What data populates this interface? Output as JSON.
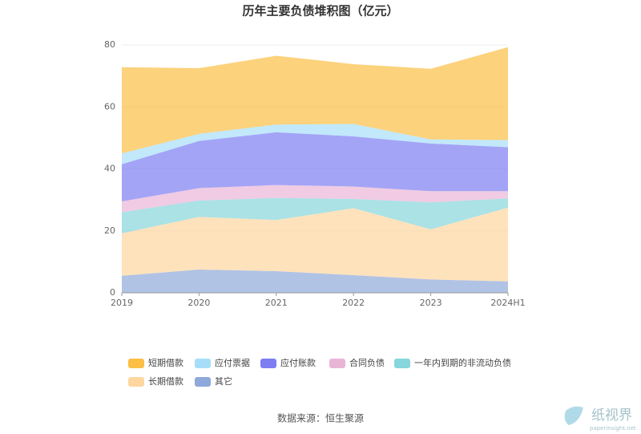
{
  "chart_data": {
    "type": "stacked_area",
    "title": "历年主要负债堆积图（亿元）",
    "categories": [
      "2019",
      "2020",
      "2021",
      "2022",
      "2023",
      "2024H1"
    ],
    "series": [
      {
        "name": "短期借款",
        "color": "#fbbf45",
        "values": [
          27.8,
          21.2,
          22.2,
          19.3,
          22.8,
          30
        ]
      },
      {
        "name": "应付票据",
        "color": "#a6def9",
        "values": [
          3.5,
          2.3,
          2.5,
          4,
          1.3,
          2.3
        ]
      },
      {
        "name": "应付账款",
        "color": "#7c7ef2",
        "values": [
          12,
          15.2,
          17,
          16.2,
          15.4,
          14.2
        ]
      },
      {
        "name": "合同负债",
        "color": "#e9b5d7",
        "values": [
          3.5,
          4,
          4.2,
          4,
          3.6,
          2.3
        ]
      },
      {
        "name": "一年内到期的非流动负债",
        "color": "#86d6dc",
        "values": [
          6.8,
          5.3,
          7.1,
          3,
          8.7,
          3
        ]
      },
      {
        "name": "长期借款",
        "color": "#fed6a0",
        "values": [
          13.7,
          17,
          16.5,
          21.6,
          16.2,
          23.8
        ]
      },
      {
        "name": "其它",
        "color": "#8ea9da",
        "values": [
          5.5,
          7.5,
          7,
          5.7,
          4.3,
          3.7
        ]
      }
    ],
    "ylim": [
      0,
      80
    ],
    "yticks": [
      0,
      20,
      40,
      60,
      80
    ],
    "grid": true,
    "source": "数据来源：恒生聚源",
    "watermark": {
      "name": "纸视界",
      "url": "paperinsight.net"
    }
  }
}
